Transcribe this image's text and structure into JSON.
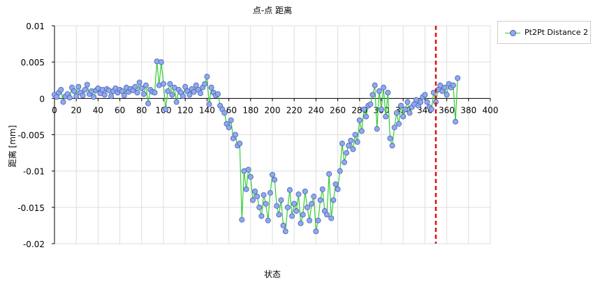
{
  "chart_data": {
    "type": "line",
    "title": "点-点 距离",
    "xlabel": "状态",
    "ylabel": "距离 [mm]",
    "xlim": [
      0,
      400
    ],
    "ylim": [
      -0.02,
      0.01
    ],
    "xticks": [
      "0",
      "20",
      "40",
      "60",
      "80",
      "100",
      "120",
      "140",
      "160",
      "180",
      "200",
      "220",
      "240",
      "260",
      "280",
      "300",
      "320",
      "340",
      "360",
      "380",
      "400"
    ],
    "yticks": [
      "0.01",
      "0.005",
      "0",
      "-0.005",
      "-0.01",
      "-0.015",
      "-0.02"
    ],
    "grid": true,
    "legend_position": "top-right",
    "marker_line_x": 350,
    "x_start": 0,
    "x_step": 2,
    "series": [
      {
        "name": "Pt2Pt Distance 2",
        "line_color": "#33cc33",
        "marker_color": "#8fa8f0",
        "values": [
          0.0005,
          0.0002,
          0.0008,
          0.0012,
          -0.0005,
          0.0003,
          0.0006,
          0.0001,
          0.0015,
          0.001,
          0.0003,
          0.0016,
          0.0008,
          0.0004,
          0.0012,
          0.0019,
          0.0006,
          0.001,
          0.0002,
          0.0011,
          0.0014,
          0.0007,
          0.0012,
          0.0005,
          0.0013,
          0.0011,
          0.0003,
          0.001,
          0.0014,
          0.0008,
          0.0012,
          0.001,
          0.0004,
          0.0015,
          0.0009,
          0.0013,
          0.0011,
          0.0016,
          0.0008,
          0.0022,
          0.0014,
          0.0006,
          0.0018,
          -0.0007,
          0.0012,
          0.0009,
          0.0008,
          0.0051,
          0.0018,
          0.005,
          0.002,
          -0.0015,
          0.001,
          0.002,
          0.0005,
          0.0015,
          -0.0005,
          0.0012,
          0.0008,
          0.0003,
          0.0016,
          0.001,
          0.0005,
          0.0013,
          0.0009,
          0.0018,
          0.0012,
          0.0007,
          0.0015,
          0.002,
          0.003,
          -0.0008,
          0.0015,
          0.0008,
          0.0004,
          0.0006,
          -0.001,
          -0.0015,
          -0.002,
          -0.0035,
          -0.004,
          -0.003,
          -0.0055,
          -0.005,
          -0.0065,
          -0.0062,
          -0.0167,
          -0.01,
          -0.0125,
          -0.0098,
          -0.0108,
          -0.014,
          -0.0128,
          -0.0135,
          -0.015,
          -0.0162,
          -0.0133,
          -0.0145,
          -0.0168,
          -0.013,
          -0.0105,
          -0.0112,
          -0.0148,
          -0.016,
          -0.014,
          -0.0175,
          -0.0183,
          -0.015,
          -0.0126,
          -0.0162,
          -0.0145,
          -0.0155,
          -0.0132,
          -0.0172,
          -0.016,
          -0.0128,
          -0.015,
          -0.0168,
          -0.0145,
          -0.0135,
          -0.0183,
          -0.0168,
          -0.014,
          -0.0125,
          -0.0155,
          -0.016,
          -0.0104,
          -0.0165,
          -0.014,
          -0.0118,
          -0.0125,
          -0.01,
          -0.0062,
          -0.0088,
          -0.0075,
          -0.0065,
          -0.0058,
          -0.007,
          -0.005,
          -0.006,
          -0.003,
          -0.0045,
          -0.0015,
          -0.0025,
          -0.001,
          -0.0008,
          0.0005,
          0.0018,
          -0.0042,
          0.001,
          -0.0015,
          0.0015,
          -0.0025,
          0.0008,
          -0.0055,
          -0.0065,
          -0.004,
          -0.002,
          -0.0035,
          -0.001,
          -0.0025,
          -0.0015,
          -0.0005,
          -0.002,
          -0.0012,
          -0.0008,
          -0.0002,
          -0.001,
          -0.0005,
          0.0002,
          0.0005,
          -0.0005,
          -0.0012,
          -0.0015,
          0.0008,
          -0.0005,
          0.0012,
          0.0018,
          0.001,
          0.0015,
          0.0005,
          0.002,
          0.0015,
          0.0018,
          -0.0032,
          0.0028
        ]
      }
    ]
  }
}
